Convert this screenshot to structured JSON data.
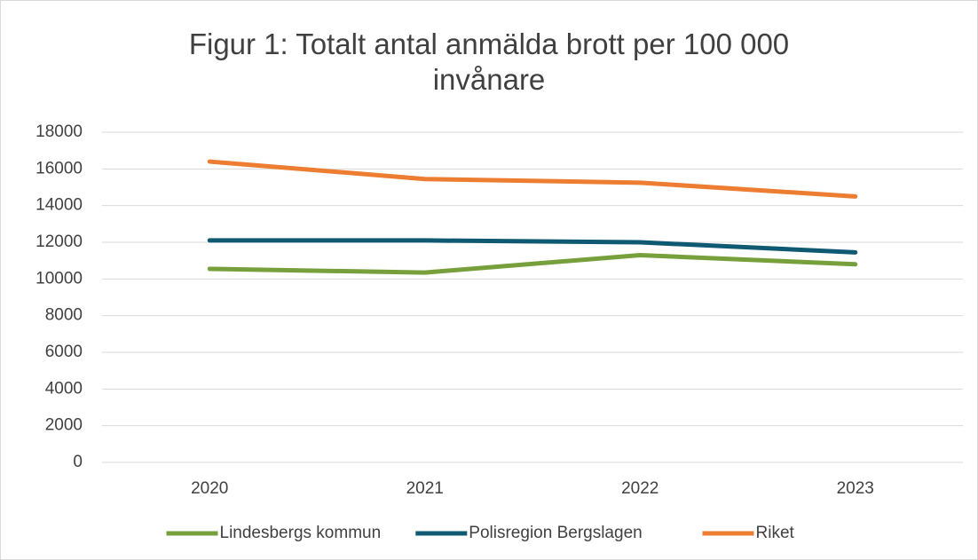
{
  "chart_data": {
    "type": "line",
    "title": "Figur 1: Totalt antal anmälda brott per 100 000 invånare",
    "categories": [
      "2020",
      "2021",
      "2022",
      "2023"
    ],
    "series": [
      {
        "name": "Lindesbergs kommun",
        "color": "#77a03c",
        "values": [
          10550,
          10350,
          11300,
          10800
        ]
      },
      {
        "name": "Polisregion Bergslagen",
        "color": "#0f5a72",
        "values": [
          12100,
          12100,
          12000,
          11450
        ]
      },
      {
        "name": "Riket",
        "color": "#ed7d31",
        "values": [
          16400,
          15450,
          15250,
          14500
        ]
      }
    ],
    "ylim": [
      0,
      18000
    ],
    "yticks": [
      0,
      2000,
      4000,
      6000,
      8000,
      10000,
      12000,
      14000,
      16000,
      18000
    ],
    "grid": true,
    "legend": "bottom"
  }
}
